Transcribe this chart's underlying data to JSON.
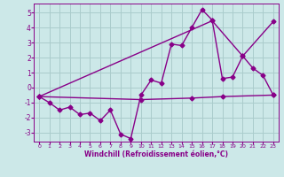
{
  "xlabel": "Windchill (Refroidissement éolien,°C)",
  "bg_color": "#cce8e8",
  "grid_color": "#aacccc",
  "line_color": "#880088",
  "xlim": [
    -0.5,
    23.5
  ],
  "ylim": [
    -3.6,
    5.6
  ],
  "xticks": [
    0,
    1,
    2,
    3,
    4,
    5,
    6,
    7,
    8,
    9,
    10,
    11,
    12,
    13,
    14,
    15,
    16,
    17,
    18,
    19,
    20,
    21,
    22,
    23
  ],
  "yticks": [
    -3,
    -2,
    -1,
    0,
    1,
    2,
    3,
    4,
    5
  ],
  "series1_x": [
    0,
    1,
    2,
    3,
    4,
    5,
    6,
    7,
    8,
    9,
    10,
    11,
    12,
    13,
    14,
    15,
    16,
    17,
    18,
    19,
    20,
    21,
    22,
    23
  ],
  "series1_y": [
    -0.6,
    -1.0,
    -1.5,
    -1.3,
    -1.8,
    -1.7,
    -2.2,
    -1.5,
    -3.1,
    -3.4,
    -0.5,
    0.5,
    0.3,
    2.9,
    2.8,
    4.0,
    5.2,
    4.5,
    0.6,
    0.7,
    2.1,
    1.3,
    0.8,
    -0.5
  ],
  "series2_x": [
    0,
    17,
    20,
    23
  ],
  "series2_y": [
    -0.6,
    4.45,
    2.1,
    4.4
  ],
  "series3_x": [
    0,
    10,
    15,
    18,
    23
  ],
  "series3_y": [
    -0.6,
    -0.8,
    -0.7,
    -0.6,
    -0.5
  ],
  "marker": "D",
  "marker_size": 2.5,
  "linewidth": 1.0
}
